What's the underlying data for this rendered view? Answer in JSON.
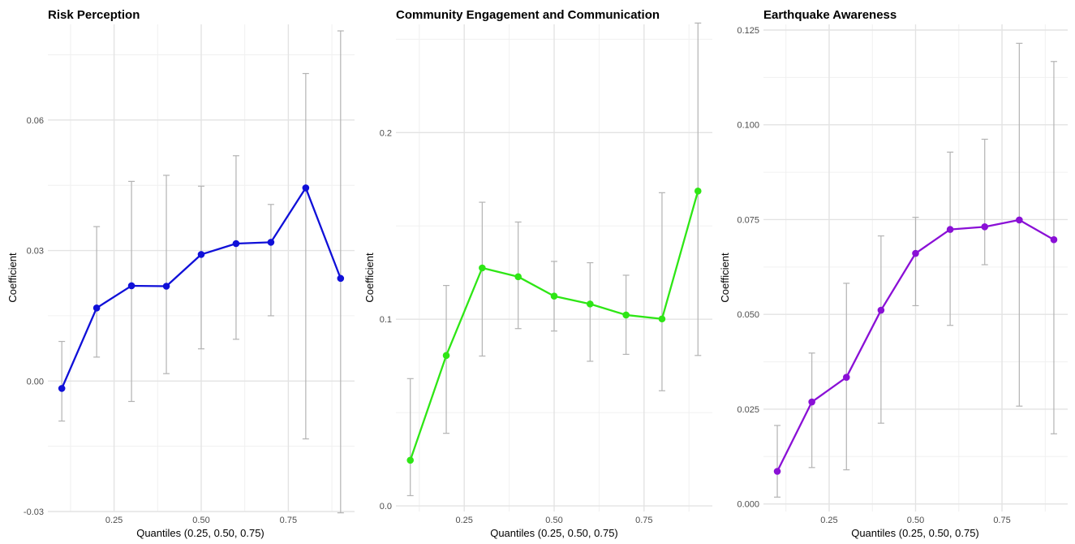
{
  "chart_data": [
    {
      "type": "line",
      "title": "Risk Perception",
      "xlabel": "Quantiles (0.25, 0.50, 0.75)",
      "ylabel": "Coefficient",
      "color": "#1010d8",
      "error_bar_color": "#b3b3b3",
      "xlim": [
        0.06,
        0.94
      ],
      "ylim": [
        -0.03,
        0.082
      ],
      "grid": true,
      "x_ticks": [
        0.25,
        0.5,
        0.75
      ],
      "x_tick_labels": [
        "0.25",
        "0.50",
        "0.75"
      ],
      "y_ticks": [
        -0.03,
        0.0,
        0.03,
        0.06
      ],
      "y_tick_labels": [
        "-0.03",
        "0.00",
        "0.03",
        "0.06"
      ],
      "series": [
        {
          "x": [
            0.1,
            0.2,
            0.3,
            0.4,
            0.5,
            0.6,
            0.7,
            0.8,
            0.9
          ],
          "values": [
            -0.0017,
            0.0168,
            0.0219,
            0.0218,
            0.0291,
            0.0316,
            0.0319,
            0.0444,
            0.0236
          ],
          "lower": [
            -0.0092,
            0.0055,
            -0.0047,
            0.0017,
            0.0074,
            0.0096,
            0.015,
            -0.0133,
            -0.0303
          ],
          "upper": [
            0.0091,
            0.0355,
            0.0459,
            0.0473,
            0.0448,
            0.0518,
            0.0406,
            0.0707,
            0.0805
          ]
        }
      ]
    },
    {
      "type": "line",
      "title": "Community Engagement and Communication",
      "xlabel": "Quantiles (0.25, 0.50, 0.75)",
      "ylabel": "Coefficient",
      "color": "#2ee615",
      "error_bar_color": "#b3b3b3",
      "xlim": [
        0.06,
        0.94
      ],
      "ylim": [
        -0.003,
        0.258
      ],
      "grid": true,
      "x_ticks": [
        0.25,
        0.5,
        0.75
      ],
      "x_tick_labels": [
        "0.25",
        "0.50",
        "0.75"
      ],
      "y_ticks": [
        0.0,
        0.1,
        0.2
      ],
      "y_tick_labels": [
        "0.0",
        "0.1",
        "0.2"
      ],
      "series": [
        {
          "x": [
            0.1,
            0.2,
            0.3,
            0.4,
            0.5,
            0.6,
            0.7,
            0.8,
            0.9
          ],
          "values": [
            0.0245,
            0.0806,
            0.1275,
            0.1228,
            0.1124,
            0.1082,
            0.1023,
            0.1002,
            0.1687
          ],
          "lower": [
            0.0055,
            0.0389,
            0.0803,
            0.095,
            0.0937,
            0.0775,
            0.0812,
            0.0617,
            0.0806
          ],
          "upper": [
            0.0682,
            0.1181,
            0.1627,
            0.1521,
            0.131,
            0.1303,
            0.1236,
            0.1678,
            0.2587
          ]
        }
      ]
    },
    {
      "type": "line",
      "title": "Earthquake Awareness",
      "xlabel": "Quantiles (0.25, 0.50, 0.75)",
      "ylabel": "Coefficient",
      "color": "#8a10d6",
      "error_bar_color": "#b3b3b3",
      "xlim": [
        0.06,
        0.94
      ],
      "ylim": [
        -0.002,
        0.1265
      ],
      "grid": true,
      "x_ticks": [
        0.25,
        0.5,
        0.75
      ],
      "x_tick_labels": [
        "0.25",
        "0.50",
        "0.75"
      ],
      "y_ticks": [
        0.0,
        0.025,
        0.05,
        0.075,
        0.1,
        0.125
      ],
      "y_tick_labels": [
        "0.000",
        "0.025",
        "0.050",
        "0.075",
        "0.100",
        "0.125"
      ],
      "series": [
        {
          "x": [
            0.1,
            0.2,
            0.3,
            0.4,
            0.5,
            0.6,
            0.7,
            0.8,
            0.9
          ],
          "values": [
            0.0086,
            0.0269,
            0.0334,
            0.0511,
            0.0661,
            0.0724,
            0.0731,
            0.0749,
            0.0697
          ],
          "lower": [
            0.0018,
            0.0096,
            0.009,
            0.0213,
            0.0523,
            0.0471,
            0.0631,
            0.0258,
            0.0185
          ],
          "upper": [
            0.0207,
            0.0398,
            0.0582,
            0.0707,
            0.0756,
            0.0928,
            0.0962,
            0.1215,
            0.1167
          ]
        }
      ]
    }
  ]
}
